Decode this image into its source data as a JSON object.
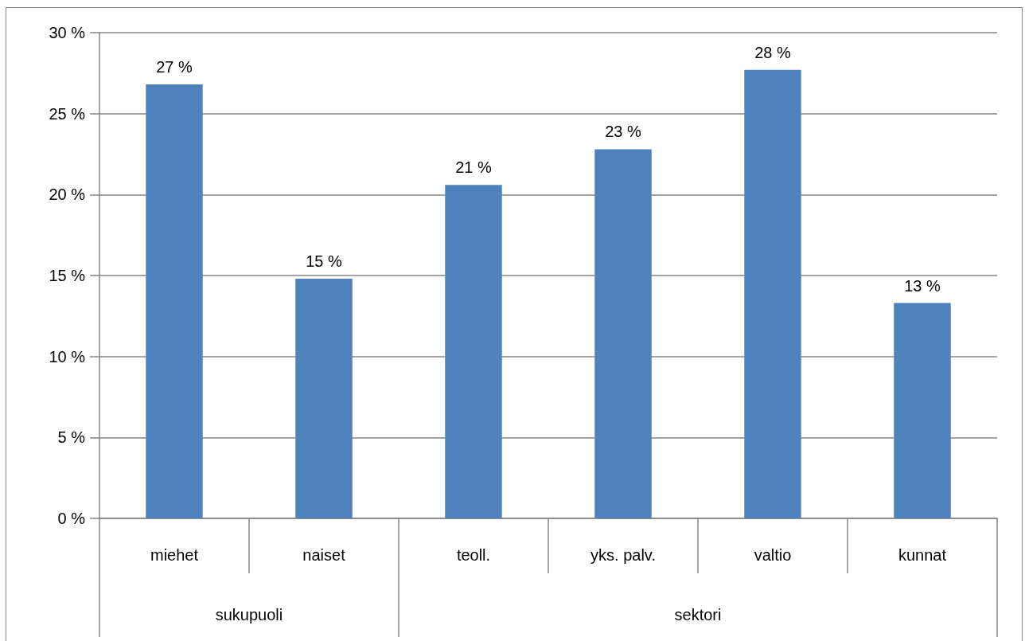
{
  "chart_data": {
    "type": "bar",
    "categories": [
      "miehet",
      "naiset",
      "teoll.",
      "yks. palv.",
      "valtio",
      "kunnat"
    ],
    "values": [
      26.8,
      14.8,
      20.6,
      22.8,
      27.7,
      13.3
    ],
    "value_labels": [
      "27 %",
      "15 %",
      "21 %",
      "23 %",
      "28 %",
      "13 %"
    ],
    "color": "#4f81bd",
    "ylim": [
      0,
      30
    ],
    "yticks": [
      {
        "value": 0,
        "label": "0 %"
      },
      {
        "value": 5,
        "label": "5 %"
      },
      {
        "value": 10,
        "label": "10 %"
      },
      {
        "value": 15,
        "label": "15 %"
      },
      {
        "value": 20,
        "label": "20 %"
      },
      {
        "value": 25,
        "label": "25 %"
      },
      {
        "value": 30,
        "label": "30 %"
      }
    ],
    "annotations": [
      "sukupuoli",
      "sektori"
    ],
    "grid": "y"
  }
}
